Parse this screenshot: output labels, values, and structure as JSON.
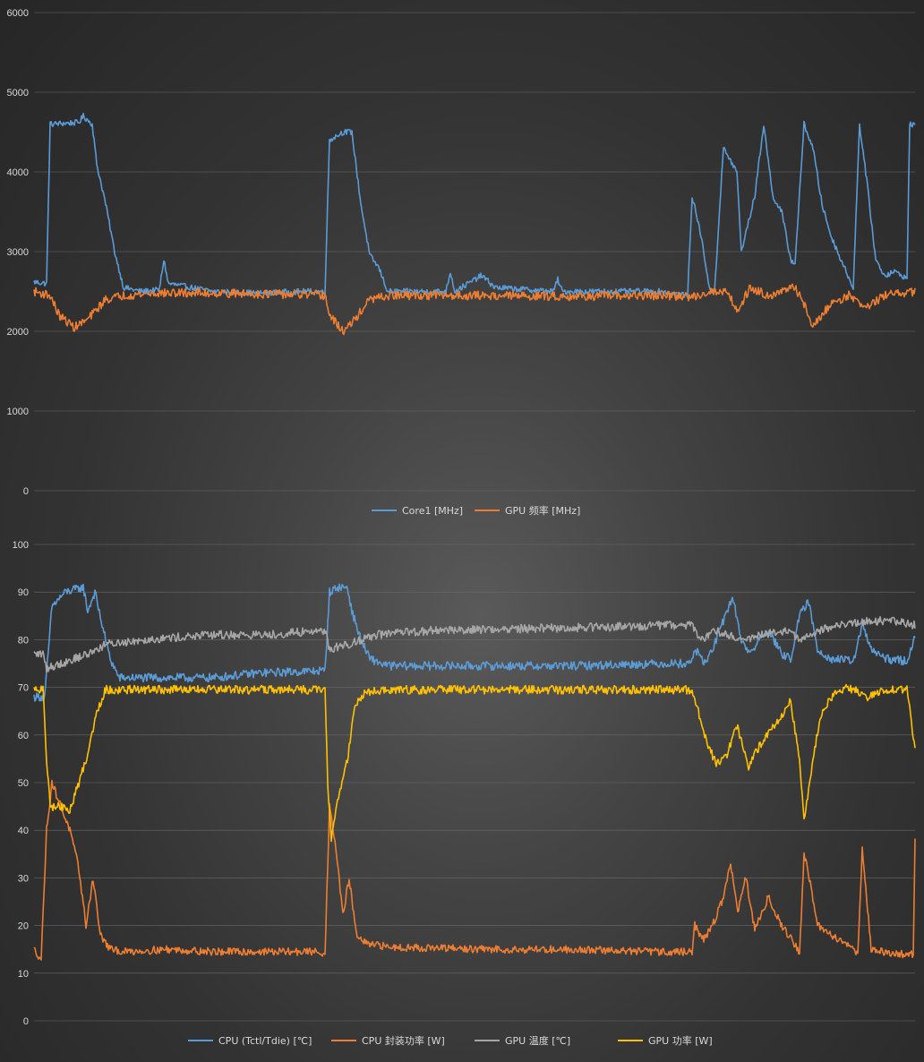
{
  "chart_data": [
    {
      "type": "line",
      "title": "",
      "xlabel": "",
      "ylabel": "",
      "ylim": [
        0,
        6000
      ],
      "yticks": [
        "0",
        "1000",
        "2000",
        "3000",
        "4000",
        "5000",
        "6000"
      ],
      "grid": true,
      "legend_position": "bottom",
      "samples": 985,
      "series": [
        {
          "name": "Core1 [MHz]",
          "color": "#5b9bd5",
          "keyframes": [
            [
              0,
              2620
            ],
            [
              14,
              2600
            ],
            [
              18,
              4600
            ],
            [
              50,
              4620
            ],
            [
              55,
              4700
            ],
            [
              65,
              4600
            ],
            [
              70,
              4100
            ],
            [
              80,
              3600
            ],
            [
              90,
              3000
            ],
            [
              100,
              2550
            ],
            [
              120,
              2500
            ],
            [
              140,
              2520
            ],
            [
              145,
              2900
            ],
            [
              150,
              2600
            ],
            [
              200,
              2500
            ],
            [
              250,
              2480
            ],
            [
              300,
              2500
            ],
            [
              325,
              2500
            ],
            [
              330,
              4400
            ],
            [
              345,
              4500
            ],
            [
              355,
              4500
            ],
            [
              365,
              3600
            ],
            [
              375,
              2950
            ],
            [
              385,
              2800
            ],
            [
              395,
              2500
            ],
            [
              420,
              2500
            ],
            [
              460,
              2500
            ],
            [
              465,
              2750
            ],
            [
              470,
              2500
            ],
            [
              500,
              2700
            ],
            [
              515,
              2550
            ],
            [
              580,
              2500
            ],
            [
              585,
              2650
            ],
            [
              590,
              2500
            ],
            [
              660,
              2500
            ],
            [
              700,
              2500
            ],
            [
              730,
              2450
            ],
            [
              735,
              3700
            ],
            [
              745,
              3200
            ],
            [
              755,
              2500
            ],
            [
              760,
              2500
            ],
            [
              770,
              4300
            ],
            [
              785,
              4000
            ],
            [
              790,
              3000
            ],
            [
              805,
              3700
            ],
            [
              815,
              4600
            ],
            [
              825,
              3700
            ],
            [
              835,
              3500
            ],
            [
              845,
              2900
            ],
            [
              850,
              2850
            ],
            [
              860,
              4600
            ],
            [
              870,
              4300
            ],
            [
              880,
              3600
            ],
            [
              890,
              3200
            ],
            [
              905,
              2800
            ],
            [
              915,
              2550
            ],
            [
              922,
              4600
            ],
            [
              930,
              3900
            ],
            [
              940,
              2900
            ],
            [
              950,
              2700
            ],
            [
              960,
              2750
            ],
            [
              970,
              2700
            ],
            [
              975,
              2650
            ],
            [
              978,
              4600
            ],
            [
              984,
              4600
            ]
          ]
        },
        {
          "name": "GPU 频率 [MHz]",
          "color": "#ed7d31",
          "keyframes": [
            [
              0,
              2500
            ],
            [
              18,
              2450
            ],
            [
              28,
              2200
            ],
            [
              45,
              2050
            ],
            [
              60,
              2150
            ],
            [
              80,
              2400
            ],
            [
              100,
              2450
            ],
            [
              140,
              2480
            ],
            [
              200,
              2480
            ],
            [
              250,
              2470
            ],
            [
              300,
              2460
            ],
            [
              325,
              2450
            ],
            [
              330,
              2200
            ],
            [
              345,
              2000
            ],
            [
              355,
              2100
            ],
            [
              375,
              2400
            ],
            [
              400,
              2450
            ],
            [
              500,
              2450
            ],
            [
              600,
              2440
            ],
            [
              700,
              2450
            ],
            [
              735,
              2430
            ],
            [
              755,
              2500
            ],
            [
              775,
              2500
            ],
            [
              785,
              2250
            ],
            [
              800,
              2550
            ],
            [
              820,
              2450
            ],
            [
              850,
              2550
            ],
            [
              860,
              2350
            ],
            [
              870,
              2050
            ],
            [
              890,
              2350
            ],
            [
              910,
              2450
            ],
            [
              930,
              2300
            ],
            [
              950,
              2450
            ],
            [
              984,
              2500
            ]
          ]
        }
      ]
    },
    {
      "type": "line",
      "title": "",
      "xlabel": "",
      "ylabel": "",
      "ylim": [
        0,
        100
      ],
      "yticks": [
        "0",
        "10",
        "20",
        "30",
        "40",
        "50",
        "60",
        "70",
        "80",
        "90",
        "100"
      ],
      "grid": true,
      "legend_position": "bottom",
      "samples": 985,
      "series": [
        {
          "name": "CPU (Tctl/Tdie) [℃]",
          "color": "#5b9bd5",
          "keyframes": [
            [
              0,
              68
            ],
            [
              12,
              68
            ],
            [
              20,
              87
            ],
            [
              35,
              90
            ],
            [
              55,
              91
            ],
            [
              60,
              86
            ],
            [
              68,
              90
            ],
            [
              75,
              84
            ],
            [
              85,
              76
            ],
            [
              95,
              72
            ],
            [
              140,
              72
            ],
            [
              200,
              72
            ],
            [
              250,
              73
            ],
            [
              325,
              73.5
            ],
            [
              330,
              90
            ],
            [
              340,
              91
            ],
            [
              350,
              91
            ],
            [
              355,
              86
            ],
            [
              365,
              80
            ],
            [
              375,
              76
            ],
            [
              395,
              74.5
            ],
            [
              500,
              74.5
            ],
            [
              600,
              74.5
            ],
            [
              700,
              75
            ],
            [
              733,
              75
            ],
            [
              738,
              78
            ],
            [
              750,
              75
            ],
            [
              760,
              79
            ],
            [
              770,
              84
            ],
            [
              780,
              89
            ],
            [
              790,
              80
            ],
            [
              800,
              77
            ],
            [
              810,
              80
            ],
            [
              820,
              82
            ],
            [
              835,
              77
            ],
            [
              845,
              76
            ],
            [
              855,
              85
            ],
            [
              865,
              88
            ],
            [
              875,
              78
            ],
            [
              890,
              76
            ],
            [
              915,
              75.5
            ],
            [
              925,
              83
            ],
            [
              935,
              78
            ],
            [
              950,
              76
            ],
            [
              975,
              75.5
            ],
            [
              984,
              81
            ]
          ]
        },
        {
          "name": "CPU 封装功率 [W]",
          "color": "#ed7d31",
          "keyframes": [
            [
              0,
              15
            ],
            [
              8,
              13
            ],
            [
              14,
              40
            ],
            [
              20,
              50
            ],
            [
              30,
              45
            ],
            [
              40,
              40
            ],
            [
              50,
              32
            ],
            [
              58,
              20
            ],
            [
              66,
              30
            ],
            [
              74,
              18
            ],
            [
              85,
              15
            ],
            [
              100,
              14.5
            ],
            [
              150,
              15
            ],
            [
              200,
              14.5
            ],
            [
              250,
              14.5
            ],
            [
              320,
              14.5
            ],
            [
              325,
              14
            ],
            [
              330,
              45
            ],
            [
              338,
              35
            ],
            [
              345,
              22
            ],
            [
              352,
              30
            ],
            [
              360,
              18
            ],
            [
              372,
              16
            ],
            [
              400,
              15.5
            ],
            [
              500,
              15
            ],
            [
              600,
              15
            ],
            [
              700,
              14.5
            ],
            [
              735,
              14.5
            ],
            [
              738,
              20
            ],
            [
              748,
              17
            ],
            [
              760,
              21
            ],
            [
              770,
              26
            ],
            [
              778,
              33
            ],
            [
              786,
              23
            ],
            [
              795,
              30
            ],
            [
              805,
              19
            ],
            [
              820,
              26
            ],
            [
              835,
              20
            ],
            [
              850,
              16
            ],
            [
              855,
              14
            ],
            [
              860,
              35
            ],
            [
              866,
              30
            ],
            [
              875,
              20
            ],
            [
              890,
              18
            ],
            [
              910,
              16
            ],
            [
              920,
              14
            ],
            [
              925,
              36
            ],
            [
              935,
              15
            ],
            [
              960,
              14
            ],
            [
              982,
              14
            ],
            [
              984,
              38
            ]
          ]
        },
        {
          "name": "GPU 温度 [℃]",
          "color": "#a5a5a5",
          "keyframes": [
            [
              0,
              77
            ],
            [
              10,
              77
            ],
            [
              14,
              74
            ],
            [
              30,
              75
            ],
            [
              60,
              77
            ],
            [
              80,
              79
            ],
            [
              120,
              80
            ],
            [
              200,
              81
            ],
            [
              260,
              81
            ],
            [
              325,
              82
            ],
            [
              330,
              78
            ],
            [
              350,
              79
            ],
            [
              380,
              81
            ],
            [
              450,
              82
            ],
            [
              600,
              82.5
            ],
            [
              700,
              83
            ],
            [
              735,
              83
            ],
            [
              745,
              80
            ],
            [
              760,
              82
            ],
            [
              775,
              81
            ],
            [
              795,
              80
            ],
            [
              815,
              81
            ],
            [
              840,
              82
            ],
            [
              855,
              80
            ],
            [
              880,
              82
            ],
            [
              900,
              83
            ],
            [
              930,
              84
            ],
            [
              960,
              84
            ],
            [
              984,
              83
            ]
          ]
        },
        {
          "name": "GPU 功率 [W]",
          "color": "#ffc000",
          "keyframes": [
            [
              0,
              69.5
            ],
            [
              10,
              69.5
            ],
            [
              14,
              55
            ],
            [
              18,
              45
            ],
            [
              30,
              45
            ],
            [
              40,
              44
            ],
            [
              50,
              50
            ],
            [
              60,
              56
            ],
            [
              70,
              65
            ],
            [
              80,
              69.5
            ],
            [
              100,
              69.5
            ],
            [
              200,
              69.5
            ],
            [
              250,
              69.5
            ],
            [
              325,
              69.5
            ],
            [
              328,
              50
            ],
            [
              332,
              38
            ],
            [
              340,
              47
            ],
            [
              350,
              55
            ],
            [
              358,
              66
            ],
            [
              370,
              69
            ],
            [
              400,
              69.5
            ],
            [
              500,
              69.5
            ],
            [
              600,
              69.5
            ],
            [
              700,
              69.5
            ],
            [
              735,
              69.5
            ],
            [
              742,
              65
            ],
            [
              752,
              58
            ],
            [
              762,
              54
            ],
            [
              772,
              55
            ],
            [
              785,
              62
            ],
            [
              798,
              53
            ],
            [
              808,
              57
            ],
            [
              818,
              60
            ],
            [
              830,
              63
            ],
            [
              845,
              67
            ],
            [
              855,
              55
            ],
            [
              860,
              42
            ],
            [
              868,
              52
            ],
            [
              878,
              64
            ],
            [
              890,
              68
            ],
            [
              910,
              70
            ],
            [
              930,
              68
            ],
            [
              950,
              69.5
            ],
            [
              970,
              69.5
            ],
            [
              975,
              70
            ],
            [
              984,
              57
            ]
          ]
        }
      ]
    }
  ]
}
